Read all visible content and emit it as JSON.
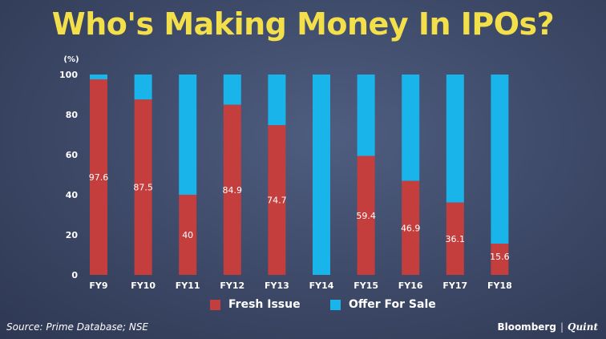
{
  "title": "Who's Making Money In IPOs?",
  "source": "Source: Prime Database; NSE",
  "brand": {
    "primary": "Bloomberg",
    "separator": "|",
    "secondary": "Quint"
  },
  "colors": {
    "fresh_issue": "#c43e3e",
    "offer_for_sale": "#19b4ea",
    "title": "#f3df4a",
    "text": "#ffffff"
  },
  "chart_data": {
    "type": "bar",
    "stacked": true,
    "title": "Who's Making Money In IPOs?",
    "ylabel": "(%)",
    "ylim": [
      0,
      100
    ],
    "yticks": [
      0,
      20,
      40,
      60,
      80,
      100
    ],
    "grid": false,
    "legend_position": "bottom",
    "categories": [
      "FY9",
      "FY10",
      "FY11",
      "FY12",
      "FY13",
      "FY14",
      "FY15",
      "FY16",
      "FY17",
      "FY18"
    ],
    "series": [
      {
        "name": "Fresh Issue",
        "values": [
          97.6,
          87.5,
          40,
          84.9,
          74.7,
          0,
          59.4,
          46.9,
          36.1,
          15.6
        ],
        "labels": [
          "97.6",
          "87.5",
          "40",
          "84.9",
          "74.7",
          "",
          "59.4",
          "46.9",
          "36.1",
          "15.6"
        ]
      },
      {
        "name": "Offer For Sale",
        "values": [
          2.4,
          12.5,
          60,
          15.1,
          25.3,
          100,
          40.6,
          53.1,
          63.9,
          84.4
        ]
      }
    ]
  }
}
